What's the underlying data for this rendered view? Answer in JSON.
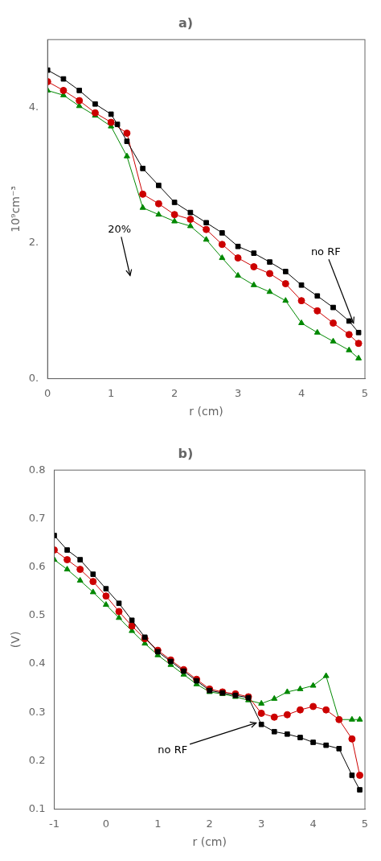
{
  "chart_data": [
    {
      "type": "line",
      "title": "a)",
      "xlabel": "r (cm)",
      "ylabel": "10⁹cm⁻³",
      "xlim": [
        0,
        5
      ],
      "ylim": [
        0,
        5
      ],
      "xticks": [
        0,
        1,
        2,
        3,
        4,
        5
      ],
      "yticks": [
        {
          "value": 0,
          "label": "0."
        },
        {
          "value": 2,
          "label": "2."
        },
        {
          "value": 4,
          "label": "4."
        }
      ],
      "grid": false,
      "series": [
        {
          "color": "#000000",
          "marker": "square",
          "x": [
            0.0,
            0.25,
            0.5,
            0.75,
            1.0,
            1.1,
            1.25,
            1.5,
            1.75,
            2.0,
            2.25,
            2.5,
            2.75,
            3.0,
            3.25,
            3.5,
            3.75,
            4.0,
            4.25,
            4.5,
            4.75,
            4.9
          ],
          "values": [
            4.55,
            4.42,
            4.25,
            4.05,
            3.9,
            3.75,
            3.5,
            3.1,
            2.85,
            2.6,
            2.45,
            2.3,
            2.15,
            1.95,
            1.85,
            1.72,
            1.58,
            1.38,
            1.22,
            1.05,
            0.85,
            0.68
          ]
        },
        {
          "color": "#cc0000",
          "marker": "circle",
          "x": [
            0.0,
            0.25,
            0.5,
            0.75,
            1.0,
            1.25,
            1.5,
            1.75,
            2.0,
            2.25,
            2.5,
            2.75,
            3.0,
            3.25,
            3.5,
            3.75,
            4.0,
            4.25,
            4.5,
            4.75,
            4.9
          ],
          "values": [
            4.38,
            4.25,
            4.1,
            3.92,
            3.78,
            3.62,
            2.72,
            2.58,
            2.42,
            2.35,
            2.2,
            1.98,
            1.78,
            1.65,
            1.55,
            1.4,
            1.15,
            1.0,
            0.82,
            0.65,
            0.52
          ]
        },
        {
          "color": "#008800",
          "marker": "triangle",
          "x": [
            0.0,
            0.25,
            0.5,
            0.75,
            1.0,
            1.25,
            1.5,
            1.75,
            2.0,
            2.25,
            2.5,
            2.75,
            3.0,
            3.25,
            3.5,
            3.75,
            4.0,
            4.25,
            4.5,
            4.75,
            4.9
          ],
          "values": [
            4.25,
            4.18,
            4.02,
            3.88,
            3.72,
            3.28,
            2.52,
            2.42,
            2.32,
            2.25,
            2.05,
            1.78,
            1.52,
            1.38,
            1.28,
            1.15,
            0.82,
            0.68,
            0.55,
            0.42,
            0.3
          ]
        }
      ],
      "annotations": [
        {
          "text": "20%",
          "x": 0.95,
          "y": 2.15,
          "arrow_x": 1.3,
          "arrow_y": 1.52
        },
        {
          "text": "no RF",
          "x": 4.15,
          "y": 1.82,
          "arrow_x": 4.82,
          "arrow_y": 0.82
        }
      ]
    },
    {
      "type": "line",
      "title": "b)",
      "xlabel": "r (cm)",
      "ylabel": "(V)",
      "xlim": [
        -1,
        5
      ],
      "ylim": [
        0.1,
        0.8
      ],
      "xticks": [
        -1,
        0,
        1,
        2,
        3,
        4,
        5
      ],
      "yticks": [
        0.1,
        0.2,
        0.3,
        0.4,
        0.5,
        0.6,
        0.7,
        0.8
      ],
      "grid": false,
      "series": [
        {
          "color": "#000000",
          "marker": "square",
          "x": [
            -1.0,
            -0.75,
            -0.5,
            -0.25,
            0.0,
            0.25,
            0.5,
            0.75,
            1.0,
            1.25,
            1.5,
            1.75,
            2.0,
            2.25,
            2.5,
            2.75,
            3.0,
            3.25,
            3.5,
            3.75,
            4.0,
            4.25,
            4.5,
            4.75,
            4.9
          ],
          "values": [
            0.665,
            0.635,
            0.615,
            0.585,
            0.555,
            0.525,
            0.49,
            0.455,
            0.425,
            0.405,
            0.385,
            0.365,
            0.345,
            0.34,
            0.335,
            0.33,
            0.275,
            0.26,
            0.255,
            0.248,
            0.238,
            0.232,
            0.225,
            0.17,
            0.14
          ]
        },
        {
          "color": "#cc0000",
          "marker": "circle",
          "x": [
            -1.0,
            -0.75,
            -0.5,
            -0.25,
            0.0,
            0.25,
            0.5,
            0.75,
            1.0,
            1.25,
            1.5,
            1.75,
            2.0,
            2.25,
            2.5,
            2.75,
            3.0,
            3.25,
            3.5,
            3.75,
            4.0,
            4.25,
            4.5,
            4.75,
            4.9
          ],
          "values": [
            0.635,
            0.615,
            0.595,
            0.57,
            0.54,
            0.508,
            0.478,
            0.452,
            0.428,
            0.408,
            0.388,
            0.368,
            0.348,
            0.342,
            0.338,
            0.332,
            0.298,
            0.29,
            0.295,
            0.305,
            0.312,
            0.305,
            0.285,
            0.245,
            0.17
          ]
        },
        {
          "color": "#008800",
          "marker": "triangle",
          "x": [
            -1.0,
            -0.75,
            -0.5,
            -0.25,
            0.0,
            0.25,
            0.5,
            0.75,
            1.0,
            1.25,
            1.5,
            1.75,
            2.0,
            2.25,
            2.5,
            2.75,
            3.0,
            3.25,
            3.5,
            3.75,
            4.0,
            4.25,
            4.5,
            4.75,
            4.9
          ],
          "values": [
            0.615,
            0.595,
            0.572,
            0.548,
            0.522,
            0.495,
            0.468,
            0.442,
            0.418,
            0.398,
            0.378,
            0.358,
            0.342,
            0.338,
            0.332,
            0.325,
            0.318,
            0.328,
            0.342,
            0.348,
            0.355,
            0.375,
            0.285,
            0.285,
            0.285
          ]
        }
      ],
      "annotations": [
        {
          "text": "no RF",
          "x": 1.0,
          "y": 0.215,
          "arrow_x": 2.9,
          "arrow_y": 0.278
        }
      ]
    }
  ]
}
